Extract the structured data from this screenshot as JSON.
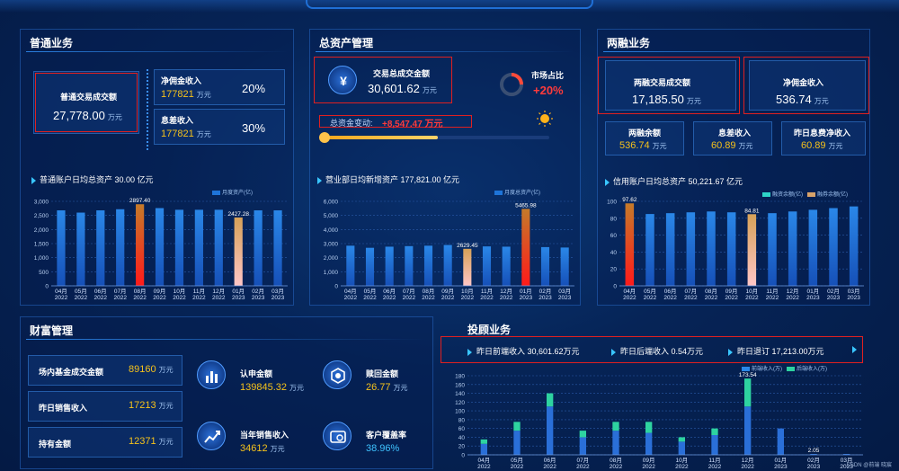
{
  "colors": {
    "accent": "#39c6ff",
    "bar": "#1e74d8",
    "highlight_red": "#e02020",
    "yellow": "#f5c21b",
    "green": "#2ed3a0"
  },
  "general": {
    "title": "普通业务",
    "trade_label": "普通交易成交额",
    "trade_value": "27,778.00",
    "unit": "万元",
    "commission_label": "净佣金收入",
    "commission_value": "177821",
    "commission_pct": "20%",
    "interest_label": "息差收入",
    "interest_value": "177821",
    "interest_pct": "30%",
    "chart_title": "普通账户日均总资产 30.00 亿元"
  },
  "assets": {
    "title": "总资产管理",
    "trade_label": "交易总成交金额",
    "trade_value": "30,601.62",
    "unit": "万元",
    "share_label": "市场占比",
    "share_value": "+20%",
    "change_label": "总资金变动:",
    "change_value": "+8,547.47 万元",
    "chart_title": "营业部日均新增资产 177,821.00 亿元"
  },
  "margin": {
    "title": "两融业务",
    "trade_label": "两融交易成交额",
    "trade_value": "17,185.50",
    "commission_label": "净佣金收入",
    "commission_value": "536.74",
    "unit": "万元",
    "balance_label": "两融余额",
    "balance_value": "536.74",
    "interest_label": "息差收入",
    "interest_value": "60.89",
    "daily_label": "昨日息费净收入",
    "daily_value": "60.89",
    "chart_title": "信用账户日均总资产 50,221.67 亿元"
  },
  "wealth": {
    "title": "财富管理",
    "rows": [
      {
        "label": "场内基金成交金额",
        "value": "89160",
        "unit": "万元"
      },
      {
        "label": "昨日销售收入",
        "value": "17213",
        "unit": "万元"
      },
      {
        "label": "持有金额",
        "value": "12371",
        "unit": "万元"
      }
    ],
    "subscribe_label": "认申金额",
    "subscribe_value": "139845.32",
    "redeem_label": "赎回金额",
    "redeem_value": "26.77",
    "year_sales_label": "当年销售收入",
    "year_sales_value": "34612",
    "coverage_label": "客户覆盖率",
    "coverage_value": "38.96%",
    "unit": "万元"
  },
  "advisory": {
    "title": "投顾业务",
    "tabs": [
      "昨日前端收入 30,601.62万元",
      "昨日后端收入 0.54万元",
      "昨日退订 17,213.00万元"
    ]
  },
  "watermark": "CSDN @前端 晓宸",
  "chart_data": [
    {
      "type": "bar",
      "categories": [
        "04月\n2022",
        "05月\n2022",
        "06月\n2022",
        "07月\n2022",
        "08月\n2022",
        "09月\n2022",
        "10月\n2022",
        "11月\n2022",
        "12月\n2022",
        "01月\n2023",
        "02月\n2023",
        "03月\n2023"
      ],
      "series": [
        {
          "name": "月度资产(亿)",
          "values": [
            2680,
            2600,
            2680,
            2720,
            2897.4,
            2760,
            2700,
            2700,
            2700,
            2427.28,
            2680,
            2680
          ]
        }
      ],
      "yticks": [
        "0",
        "500",
        "1,000",
        "1,500",
        "2,000",
        "2,500",
        "3,000"
      ],
      "ylim": [
        0,
        3000
      ],
      "data_labels": {
        "4": "2897.40",
        "9": "2427.28"
      }
    },
    {
      "type": "bar",
      "categories": [
        "04月\n2022",
        "05月\n2022",
        "06月\n2022",
        "07月\n2022",
        "08月\n2022",
        "09月\n2022",
        "10月\n2022",
        "11月\n2022",
        "12月\n2022",
        "01月\n2023",
        "02月\n2023",
        "03月\n2023"
      ],
      "series": [
        {
          "name": "月度总资产(亿)",
          "values": [
            2850,
            2700,
            2780,
            2820,
            2850,
            2900,
            2629.45,
            2800,
            2780,
            5465.98,
            2750,
            2720
          ]
        }
      ],
      "yticks": [
        "0",
        "1,000",
        "2,000",
        "3,000",
        "4,000",
        "5,000",
        "6,000"
      ],
      "ylim": [
        0,
        6000
      ],
      "data_labels": {
        "6": "2629.45",
        "9": "5465.98"
      }
    },
    {
      "type": "bar",
      "categories": [
        "04月\n2022",
        "05月\n2022",
        "06月\n2022",
        "07月\n2022",
        "08月\n2022",
        "09月\n2022",
        "10月\n2022",
        "11月\n2022",
        "12月\n2022",
        "01月\n2023",
        "02月\n2023",
        "03月\n2023"
      ],
      "series": [
        {
          "name": "融资余额(亿)",
          "values": [
            97.62,
            85,
            86,
            87,
            88,
            87,
            84.81,
            86,
            88,
            90,
            92,
            94
          ]
        },
        {
          "name": "融券余额(亿)",
          "values": [
            0,
            0,
            0,
            0,
            0,
            0,
            0,
            0,
            0,
            0,
            0,
            0
          ]
        }
      ],
      "yticks": [
        "0",
        "20",
        "40",
        "60",
        "80",
        "100"
      ],
      "ylim": [
        0,
        100
      ],
      "data_labels": {
        "0": "97.62",
        "6": "84.81"
      }
    },
    {
      "type": "bar",
      "stacked": true,
      "categories": [
        "04月\n2022",
        "05月\n2022",
        "06月\n2022",
        "07月\n2022",
        "08月\n2022",
        "09月\n2022",
        "10月\n2022",
        "11月\n2022",
        "12月\n2022",
        "01月\n2023",
        "02月\n2023",
        "03月\n2023"
      ],
      "series": [
        {
          "name": "前端收入(万)",
          "values": [
            25,
            55,
            110,
            40,
            55,
            50,
            30,
            45,
            110,
            60,
            2.05,
            2
          ]
        },
        {
          "name": "后端收入(万)",
          "values": [
            10,
            20,
            30,
            15,
            20,
            25,
            10,
            15,
            63.54,
            0,
            0,
            0
          ]
        }
      ],
      "yticks": [
        "0",
        "20",
        "40",
        "60",
        "80",
        "100",
        "120",
        "140",
        "160",
        "180"
      ],
      "ylim": [
        0,
        180
      ],
      "data_labels": {
        "8": "173.54",
        "10": "2.05"
      }
    }
  ]
}
